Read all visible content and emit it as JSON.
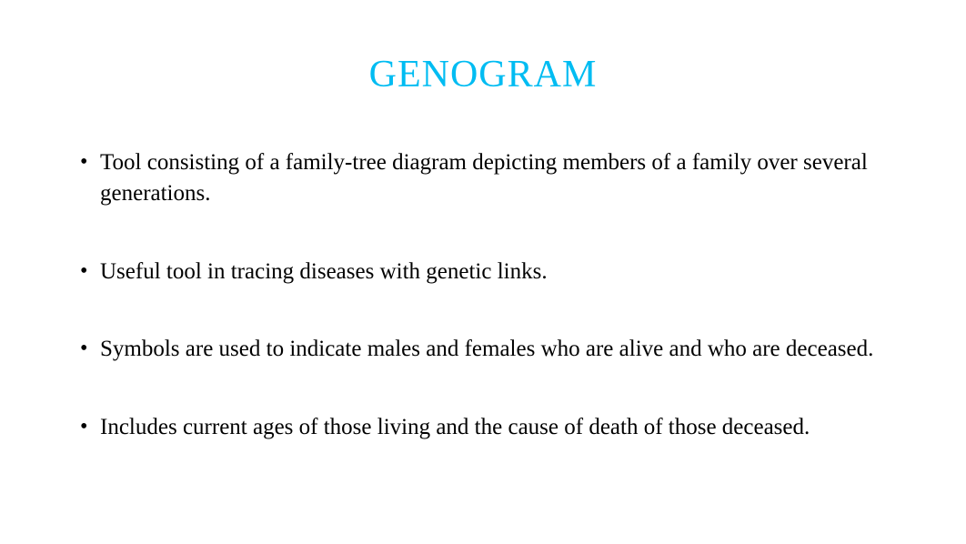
{
  "title": {
    "text": "GENOGRAM",
    "color": "#00bcf2",
    "fontsize": 42
  },
  "body": {
    "color": "#000000",
    "fontsize": 25,
    "bullets": [
      "Tool consisting of a family-tree diagram depicting members of a family over several generations.",
      "Useful tool in tracing diseases with genetic links.",
      "Symbols are used to indicate males and females who are alive and who are deceased.",
      "Includes current ages of those living and the cause of death of those deceased."
    ]
  },
  "background_color": "#ffffff"
}
